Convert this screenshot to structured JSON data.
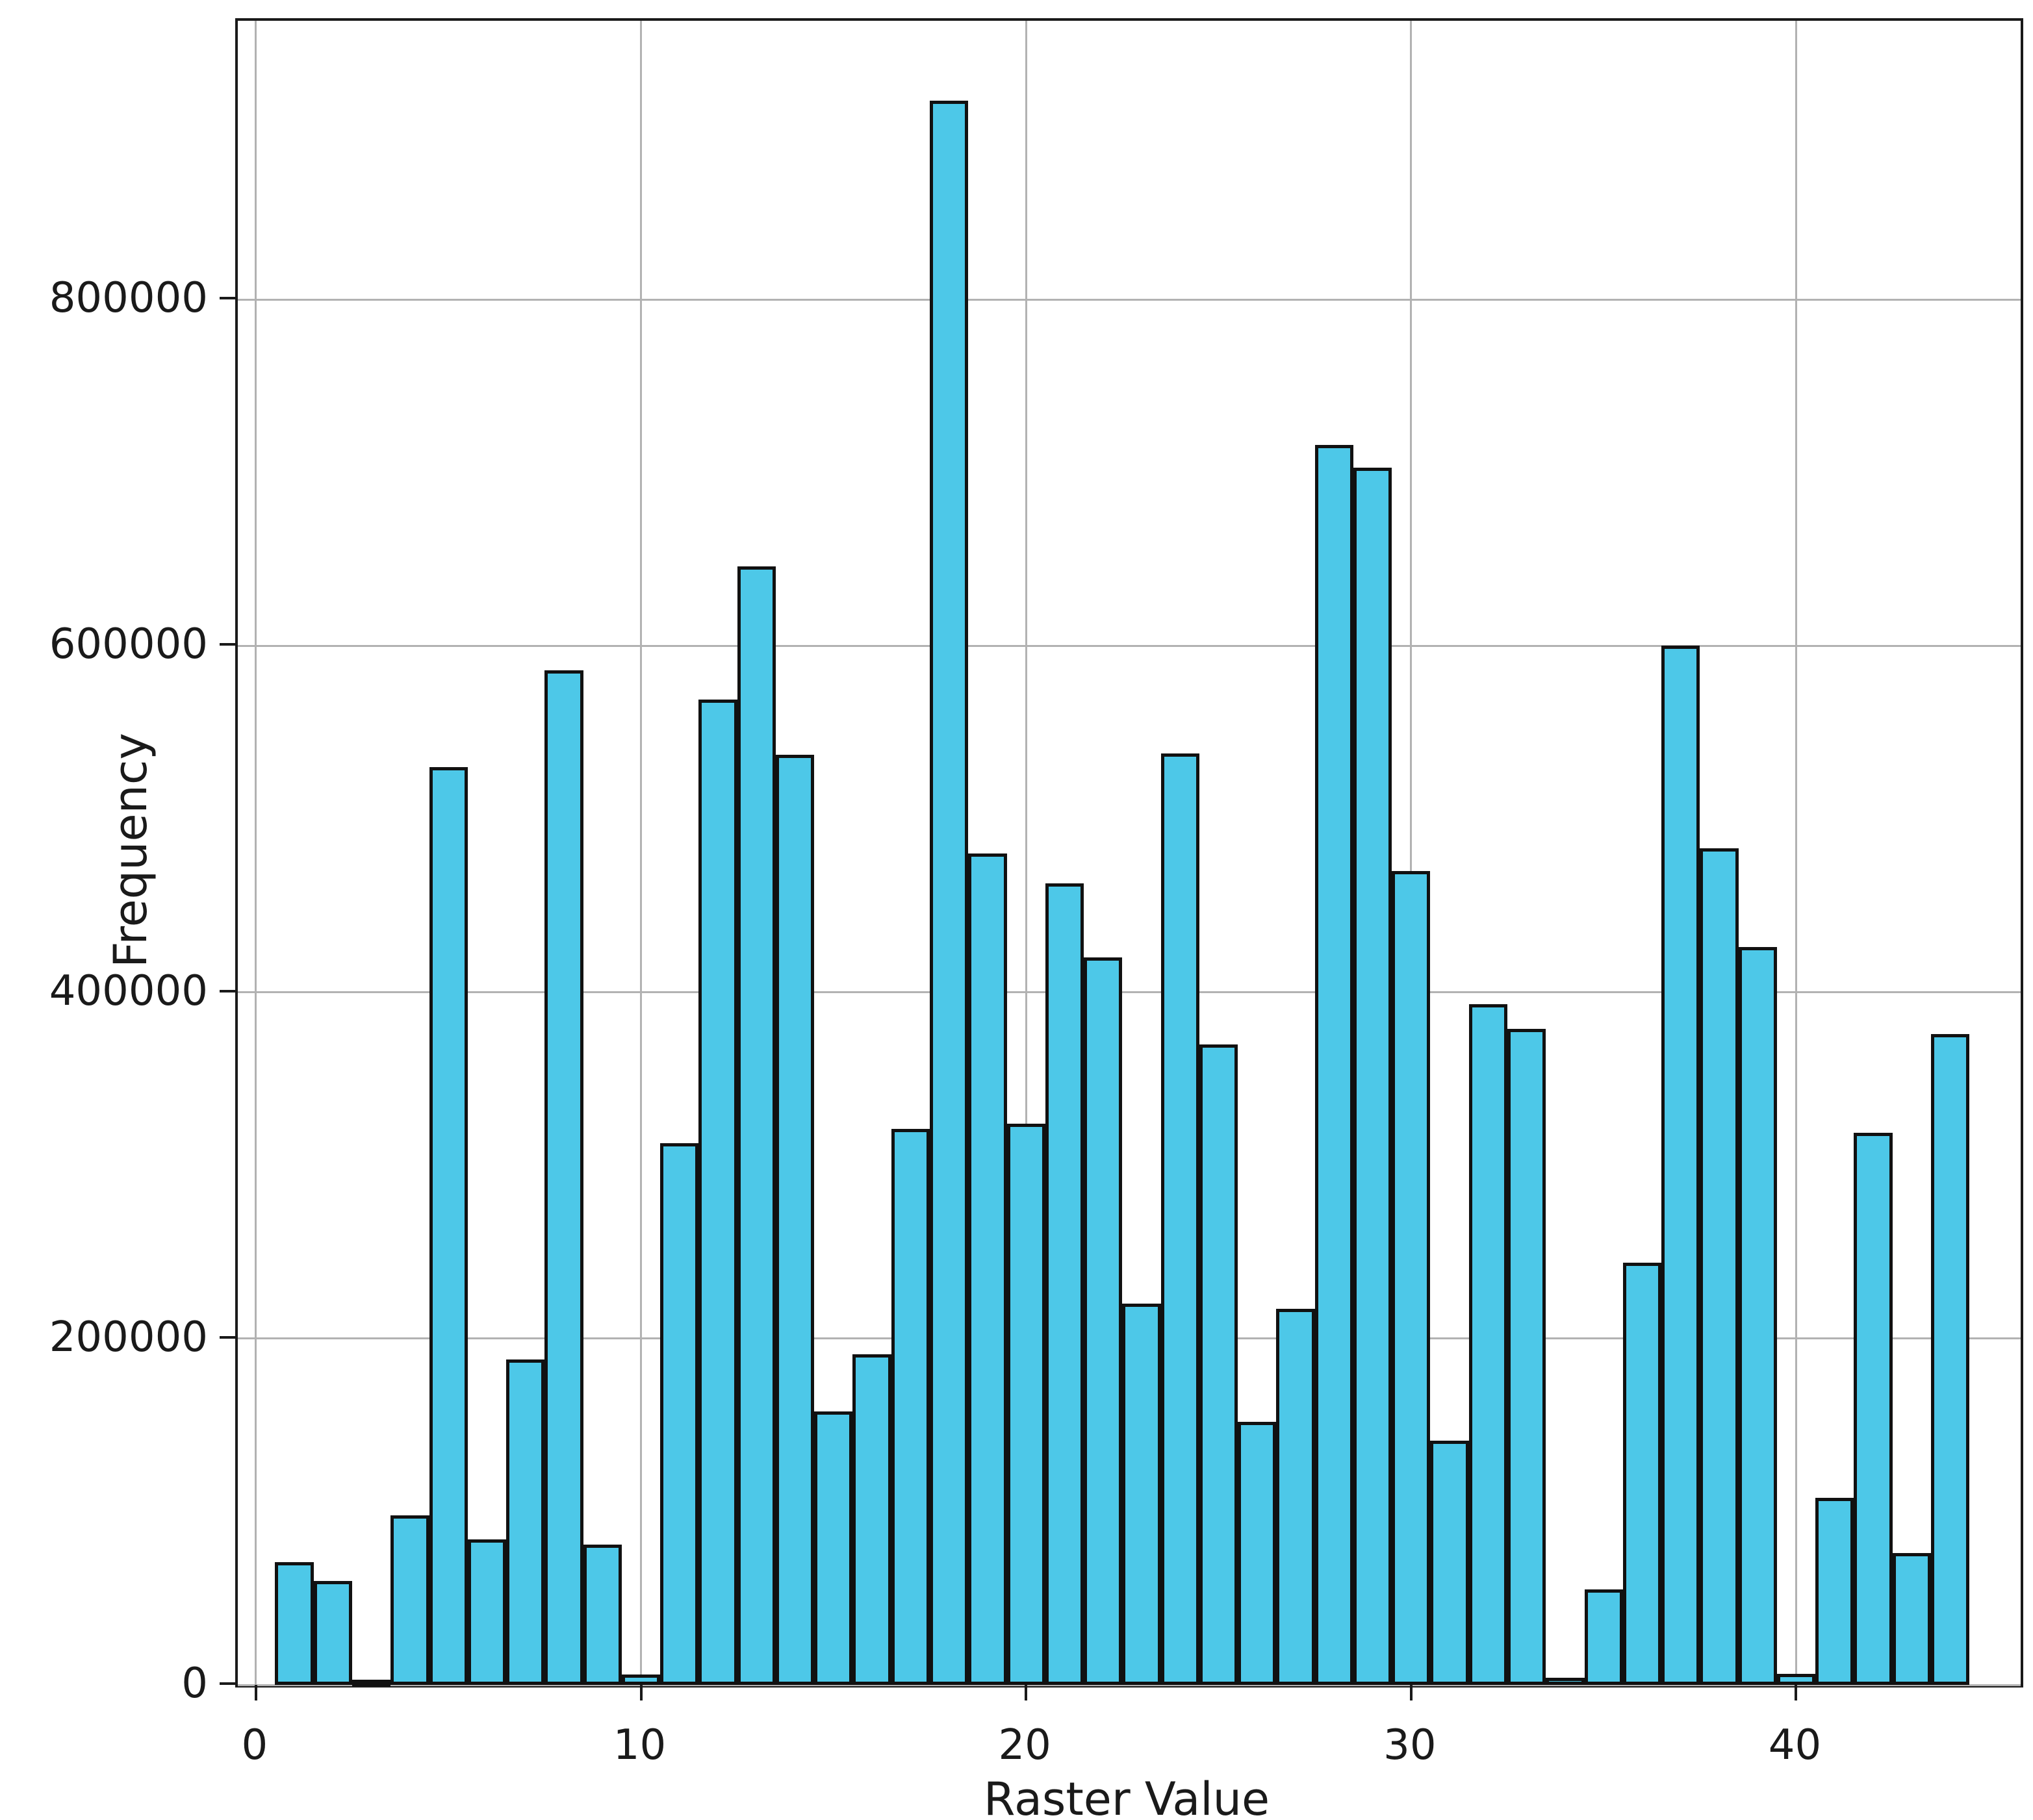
{
  "chart_data": {
    "type": "bar",
    "title": "",
    "xlabel": "Raster Value",
    "ylabel": "Frequency",
    "x": [
      1,
      2,
      3,
      4,
      5,
      6,
      7,
      8,
      9,
      10,
      11,
      12,
      13,
      14,
      15,
      16,
      17,
      18,
      19,
      20,
      21,
      22,
      23,
      24,
      25,
      26,
      27,
      28,
      29,
      30,
      31,
      32,
      33,
      34,
      35,
      36,
      37,
      38,
      39,
      40,
      41,
      42,
      43,
      44
    ],
    "values": [
      71000,
      60000,
      3000,
      98000,
      530000,
      84000,
      188000,
      586000,
      81000,
      6000,
      313000,
      569000,
      646000,
      537000,
      158000,
      191000,
      321000,
      915000,
      480000,
      324000,
      463000,
      420000,
      220000,
      538000,
      370000,
      152000,
      217000,
      716000,
      703000,
      470000,
      141000,
      393000,
      379000,
      4000,
      55000,
      244000,
      600000,
      483000,
      426000,
      6500,
      108000,
      319000,
      76000,
      376000
    ],
    "bar_width": 1,
    "xticks": [
      0,
      10,
      20,
      30,
      40
    ],
    "yticks": [
      0,
      200000,
      400000,
      600000,
      800000
    ],
    "xlim": [
      -0.47,
      45.83
    ],
    "ylim": [
      0,
      961000
    ],
    "grid": true,
    "legend_position": "none",
    "bar_color": "#4DC8E8",
    "bar_edge_color": "#111111",
    "grid_color": "#b2b2b2",
    "axis_color": "#1a1a1a",
    "background_color": "#ffffff"
  }
}
